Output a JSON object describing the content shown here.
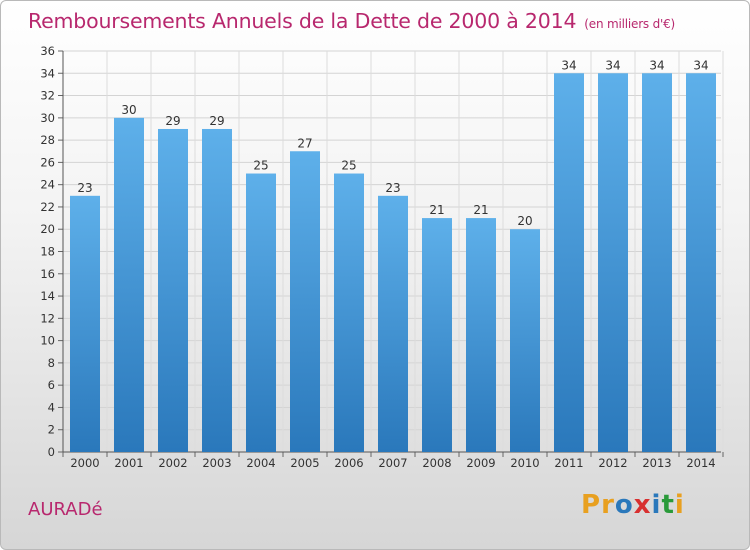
{
  "header": {
    "title": "Remboursements Annuels de la Dette de 2000 à 2014",
    "subtitle": "(en milliers d'€)"
  },
  "footer": {
    "place": "AURADé",
    "logo": [
      "P",
      "r",
      "o",
      "x",
      "i",
      "t",
      "i"
    ]
  },
  "colors": {
    "title": "#b8286e",
    "bar_top": "#5eb0ea",
    "bar_bottom": "#2a78bb",
    "logo": [
      "#e8a020",
      "#e8a020",
      "#2a78bb",
      "#d83030",
      "#2a78bb",
      "#2a9a3a",
      "#e8a020"
    ]
  },
  "chart_data": {
    "type": "bar",
    "title": "Remboursements Annuels de la Dette de 2000 à 2014",
    "xlabel": "",
    "ylabel": "",
    "categories": [
      "2000",
      "2001",
      "2002",
      "2003",
      "2004",
      "2005",
      "2006",
      "2007",
      "2008",
      "2009",
      "2010",
      "2011",
      "2012",
      "2013",
      "2014"
    ],
    "values": [
      23,
      30,
      29,
      29,
      25,
      27,
      25,
      23,
      21,
      21,
      20,
      34,
      34,
      34,
      34
    ],
    "ylim": [
      0,
      36
    ],
    "yticks": [
      0,
      2,
      4,
      6,
      8,
      10,
      12,
      14,
      16,
      18,
      20,
      22,
      24,
      26,
      28,
      30,
      32,
      34,
      36
    ],
    "grid": true
  }
}
